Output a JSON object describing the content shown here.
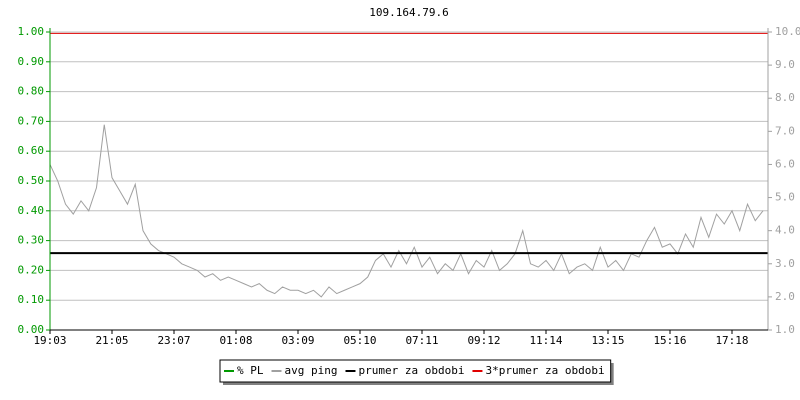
{
  "chart_data": {
    "type": "line",
    "title": "109.164.79.6",
    "categories": [
      "19:03",
      null,
      null,
      null,
      null,
      null,
      null,
      null,
      "21:05",
      null,
      null,
      null,
      null,
      null,
      null,
      null,
      "23:07",
      null,
      null,
      null,
      null,
      null,
      null,
      null,
      "01:08",
      null,
      null,
      null,
      null,
      null,
      null,
      null,
      "03:09",
      null,
      null,
      null,
      null,
      null,
      null,
      null,
      "05:10",
      null,
      null,
      null,
      null,
      null,
      null,
      null,
      "07:11",
      null,
      null,
      null,
      null,
      null,
      null,
      null,
      "09:12",
      null,
      null,
      null,
      null,
      null,
      null,
      null,
      "11:14",
      null,
      null,
      null,
      null,
      null,
      null,
      null,
      "13:15",
      null,
      null,
      null,
      null,
      null,
      null,
      null,
      "15:16",
      null,
      null,
      null,
      null,
      null,
      null,
      null,
      "17:18",
      null,
      null,
      null,
      null
    ],
    "series": [
      {
        "name": "% PL",
        "color": "#009900",
        "values": [
          0,
          0,
          0,
          0,
          0,
          0,
          0,
          0,
          0,
          0,
          0,
          0,
          0,
          0,
          0,
          0,
          0,
          0,
          0,
          0,
          0,
          0,
          0,
          0,
          0,
          0,
          0,
          0,
          0,
          0,
          0,
          0,
          0,
          0,
          0,
          0,
          0,
          0,
          0,
          0,
          0,
          0,
          0,
          0,
          0,
          0,
          0,
          0,
          0,
          0,
          0,
          0,
          0,
          0,
          0,
          0,
          0,
          0,
          0,
          0,
          0,
          0,
          0,
          0,
          0,
          0,
          0,
          0,
          0,
          0,
          0,
          0,
          0,
          0,
          0,
          0,
          0,
          0,
          0,
          0,
          0,
          0,
          0,
          0,
          0,
          0,
          0,
          0,
          0,
          0,
          0,
          0,
          0
        ]
      },
      {
        "name": "avg ping",
        "color": "#a0a0a0",
        "axis": "y2",
        "values": [
          6.0,
          5.5,
          4.8,
          4.5,
          4.9,
          4.6,
          5.3,
          7.2,
          5.6,
          5.2,
          4.8,
          5.4,
          4.0,
          3.6,
          3.4,
          3.3,
          3.2,
          3.0,
          2.9,
          2.8,
          2.6,
          2.7,
          2.5,
          2.6,
          2.5,
          2.4,
          2.3,
          2.4,
          2.2,
          2.1,
          2.3,
          2.2,
          2.2,
          2.1,
          2.2,
          2.0,
          2.3,
          2.1,
          2.2,
          2.3,
          2.4,
          2.6,
          3.1,
          3.3,
          2.9,
          3.4,
          3.0,
          3.5,
          2.9,
          3.2,
          2.7,
          3.0,
          2.8,
          3.3,
          2.7,
          3.1,
          2.9,
          3.4,
          2.8,
          3.0,
          3.3,
          4.0,
          3.0,
          2.9,
          3.1,
          2.8,
          3.3,
          2.7,
          2.9,
          3.0,
          2.8,
          3.5,
          2.9,
          3.1,
          2.8,
          3.3,
          3.2,
          3.7,
          4.1,
          3.5,
          3.6,
          3.3,
          3.9,
          3.5,
          4.4,
          3.8,
          4.5,
          4.2,
          4.6,
          4.0,
          4.8,
          4.3,
          4.6
        ]
      },
      {
        "name": "prumer za obdobi",
        "color": "#000000",
        "axis": "y2",
        "value": 3.32
      },
      {
        "name": "3*prumer za obdobi",
        "color": "#e00000",
        "axis": "y2",
        "value": 9.96
      }
    ],
    "ylim": [
      0,
      1
    ],
    "yticks": [
      {
        "value": 0,
        "label": "0.00"
      },
      {
        "value": 0.1,
        "label": "0.10"
      },
      {
        "value": 0.2,
        "label": "0.20"
      },
      {
        "value": 0.3,
        "label": "0.30"
      },
      {
        "value": 0.4,
        "label": "0.40"
      },
      {
        "value": 0.5,
        "label": "0.50"
      },
      {
        "value": 0.6,
        "label": "0.60"
      },
      {
        "value": 0.7,
        "label": "0.70"
      },
      {
        "value": 0.8,
        "label": "0.80"
      },
      {
        "value": 0.9,
        "label": "0.90"
      },
      {
        "value": 1,
        "label": "1.00"
      }
    ],
    "y2lim": [
      1,
      10
    ],
    "y2ticks": [
      {
        "value": 1,
        "label": "1.0"
      },
      {
        "value": 2,
        "label": "2.0"
      },
      {
        "value": 3,
        "label": "3.0"
      },
      {
        "value": 4,
        "label": "4.0"
      },
      {
        "value": 5,
        "label": "5.0"
      },
      {
        "value": 6,
        "label": "6.0"
      },
      {
        "value": 7,
        "label": "7.0"
      },
      {
        "value": 8,
        "label": "8.0"
      },
      {
        "value": 9,
        "label": "9.0"
      },
      {
        "value": 10,
        "label": "10.0"
      }
    ],
    "grid": true,
    "legend": "bottom"
  }
}
